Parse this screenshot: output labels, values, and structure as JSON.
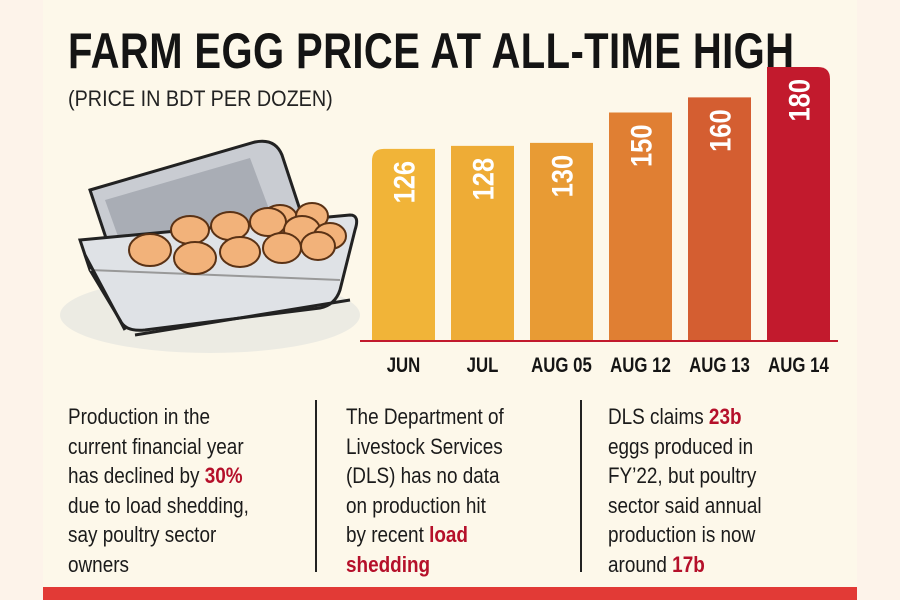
{
  "header": {
    "title": "FARM EGG PRICE AT ALL-TIME HIGH",
    "subtitle": "(PRICE IN BDT PER DOZEN)"
  },
  "chart_data": {
    "type": "bar",
    "title": "FARM EGG PRICE AT ALL-TIME HIGH",
    "subtitle": "(PRICE IN BDT PER DOZEN)",
    "categories": [
      "JUN",
      "JUL",
      "AUG 05",
      "AUG 12",
      "AUG 13",
      "AUG 14"
    ],
    "values": [
      126,
      128,
      130,
      150,
      160,
      180
    ],
    "xlabel": "",
    "ylabel": "Price (BDT per dozen)",
    "ylim": [
      0,
      180
    ],
    "grid": false,
    "colors": [
      "#f1b438",
      "#eeac36",
      "#e89b34",
      "#e07f33",
      "#d45e31",
      "#c21a2d"
    ]
  },
  "notes": [
    {
      "lines": [
        [
          {
            "t": "Production in the"
          }
        ],
        [
          {
            "t": "current financial year"
          }
        ],
        [
          {
            "t": "has declined by "
          },
          {
            "t": "30%",
            "h": true
          }
        ],
        [
          {
            "t": "due to load shedding,"
          }
        ],
        [
          {
            "t": "say poultry sector"
          }
        ],
        [
          {
            "t": "owners"
          }
        ]
      ]
    },
    {
      "lines": [
        [
          {
            "t": "The Department of"
          }
        ],
        [
          {
            "t": "Livestock Services"
          }
        ],
        [
          {
            "t": "(DLS) has no data"
          }
        ],
        [
          {
            "t": "on production hit"
          }
        ],
        [
          {
            "t": "by recent "
          },
          {
            "t": "load",
            "h": true
          }
        ],
        [
          {
            "t": "shedding",
            "h": true
          }
        ]
      ]
    },
    {
      "lines": [
        [
          {
            "t": "DLS claims "
          },
          {
            "t": "23b",
            "h": true
          }
        ],
        [
          {
            "t": "eggs produced in"
          }
        ],
        [
          {
            "t": "FY’22, but poultry"
          }
        ],
        [
          {
            "t": "sector said annual"
          }
        ],
        [
          {
            "t": "production is now"
          }
        ],
        [
          {
            "t": "around "
          },
          {
            "t": "17b",
            "h": true
          }
        ]
      ]
    }
  ]
}
